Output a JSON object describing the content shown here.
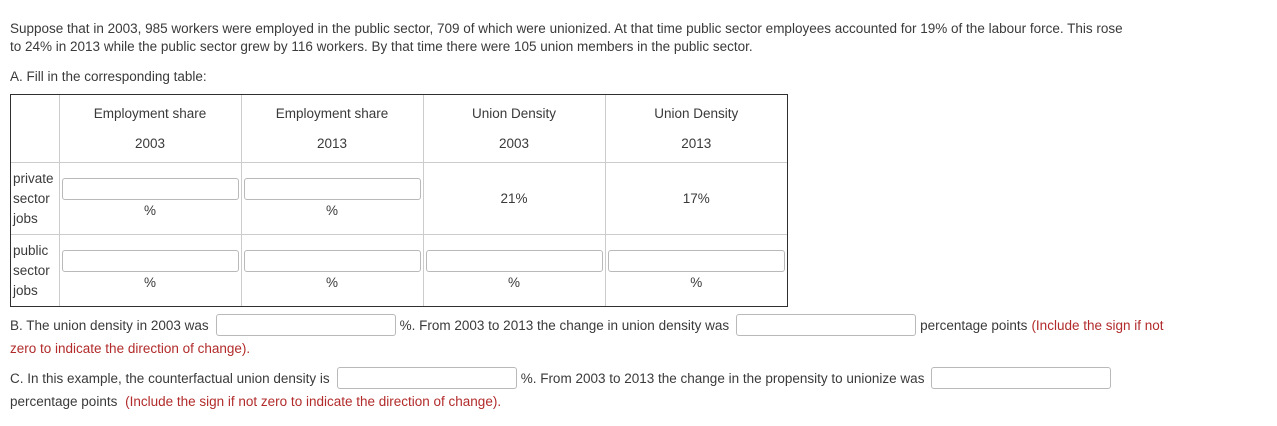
{
  "intro": {
    "line1": "Suppose that in 2003, 985 workers were employed in the public sector, 709 of which were unionized. At that time public sector employees accounted for 19% of the labour force. This rose",
    "line2": "to 24% in 2013 while the public sector grew by 116 workers. By that time there were 105 union members in the public sector."
  },
  "section_a": {
    "heading": "A. Fill in the corresponding table:",
    "table": {
      "col_headers": [
        {
          "title": "Employment share",
          "year": "2003"
        },
        {
          "title": "Employment share",
          "year": "2013"
        },
        {
          "title": "Union Density",
          "year": "2003"
        },
        {
          "title": "Union Density",
          "year": "2013"
        }
      ],
      "rows": [
        {
          "label": "private sector jobs",
          "cells": [
            {
              "kind": "input",
              "value": "",
              "suffix": "%"
            },
            {
              "kind": "input",
              "value": "",
              "suffix": "%"
            },
            {
              "kind": "text",
              "value": "21%"
            },
            {
              "kind": "text",
              "value": "17%"
            }
          ]
        },
        {
          "label": "public sector jobs",
          "cells": [
            {
              "kind": "input",
              "value": "",
              "suffix": "%"
            },
            {
              "kind": "input",
              "value": "",
              "suffix": "%"
            },
            {
              "kind": "input",
              "value": "",
              "suffix": "%"
            },
            {
              "kind": "input",
              "value": "",
              "suffix": "%"
            }
          ]
        }
      ]
    }
  },
  "section_b": {
    "text_1": "B. The union density in 2003 was",
    "input1_value": "",
    "text_2": "%. From 2003 to 2013 the change in union density was",
    "input2_value": "",
    "text_3": "percentage points",
    "red_line1": "(Include the sign if not",
    "red_line2": "zero to indicate the direction of change)."
  },
  "section_c": {
    "text_1": "C. In this example, the counterfactual union density is",
    "input1_value": "",
    "text_2": "%. From 2003 to 2013 the change in the propensity to unionize was",
    "input2_value": "",
    "text_3": "percentage points",
    "red_text": "(Include the sign if not zero to indicate the direction of change)."
  },
  "colors": {
    "body_text": "#3a3a3a",
    "red_instruction": "#b22b2b",
    "input_border": "#b9b9b9",
    "table_outer_border": "#2f2f2f",
    "table_inner_border": "#cccccc"
  }
}
